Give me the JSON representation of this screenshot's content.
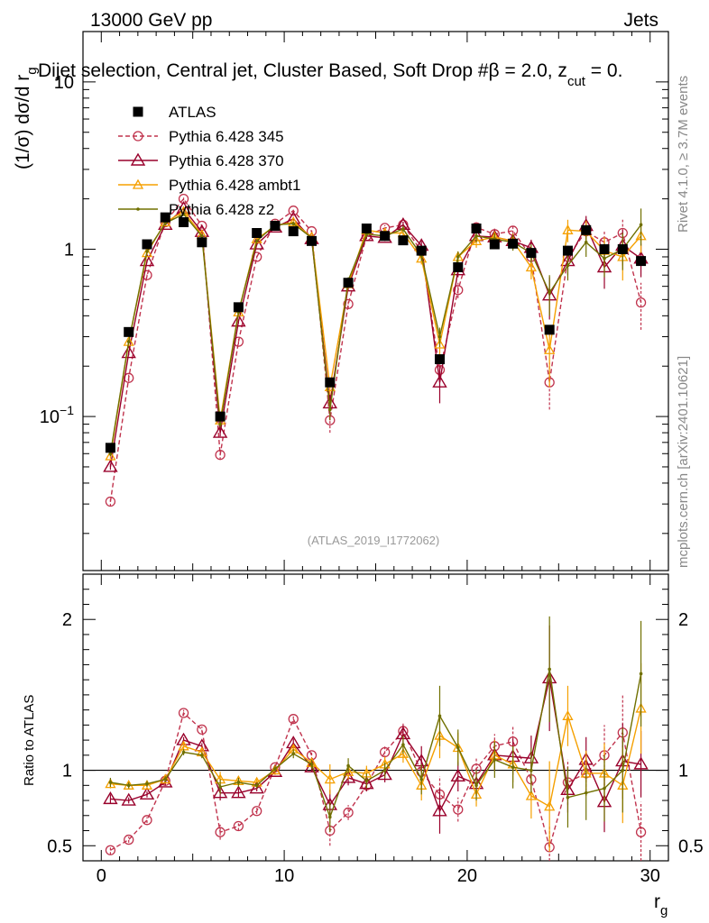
{
  "header": {
    "left": "13000 GeV pp",
    "right": "Jets",
    "title": "Dijet selection, Central jet, Cluster Based, Soft Drop #β = 2.0, z",
    "title_sub": "cut",
    "title_tail": " = 0.",
    "ref_label": "(ATLAS_2019_I1772062)",
    "side_top": "Rivet 4.1.0, ≥ 3.7M events",
    "side_bottom": "mcplots.cern.ch [arXiv:2401.10621]"
  },
  "colors": {
    "data": "#000000",
    "p345": "#c0334d",
    "p370": "#99002b",
    "ambt1": "#f5a000",
    "z2": "#707000"
  },
  "chart_data": [
    {
      "type": "line",
      "panel": "main",
      "ylabel": "(1/σ) dσ/d r",
      "ylabel_sub": "g",
      "yscale": "log",
      "ylim": [
        0.012,
        20
      ],
      "xlim": [
        -1,
        31
      ],
      "yticks": [
        {
          "v": 0.1,
          "label": "10",
          "exp": "−1"
        },
        {
          "v": 1,
          "label": "1"
        },
        {
          "v": 10,
          "label": "10"
        }
      ],
      "x": [
        0.5,
        1.5,
        2.5,
        3.5,
        4.5,
        5.5,
        6.5,
        7.5,
        8.5,
        9.5,
        10.5,
        11.5,
        12.5,
        13.5,
        14.5,
        15.5,
        16.5,
        17.5,
        18.5,
        19.5,
        20.5,
        21.5,
        22.5,
        23.5,
        24.5,
        25.5,
        26.5,
        27.5,
        28.5,
        29.5
      ],
      "series": [
        {
          "name": "ATLAS",
          "key": "data",
          "marker": "square",
          "values": [
            0.065,
            0.32,
            1.07,
            1.55,
            1.45,
            1.1,
            0.1,
            0.45,
            1.25,
            1.38,
            1.28,
            1.12,
            0.16,
            0.63,
            1.33,
            1.2,
            1.13,
            0.98,
            0.22,
            0.78,
            1.33,
            1.07,
            1.08,
            0.95,
            0.33,
            0.98,
            1.3,
            1.0,
            1.0,
            0.85
          ]
        },
        {
          "name": "Pythia 6.428 345",
          "key": "p345",
          "marker": "circle",
          "dash": true,
          "values": [
            0.031,
            0.17,
            0.7,
            1.45,
            2.0,
            1.38,
            0.059,
            0.28,
            0.9,
            1.42,
            1.7,
            1.28,
            0.095,
            0.47,
            1.2,
            1.34,
            1.4,
            0.97,
            0.19,
            0.57,
            1.35,
            1.23,
            1.29,
            0.9,
            0.16,
            0.9,
            1.28,
            1.1,
            1.25,
            0.48
          ],
          "err": [
            0.002,
            0.008,
            0.02,
            0.03,
            0.04,
            0.03,
            0.004,
            0.01,
            0.02,
            0.03,
            0.04,
            0.03,
            0.015,
            0.03,
            0.05,
            0.05,
            0.06,
            0.07,
            0.03,
            0.06,
            0.1,
            0.1,
            0.12,
            0.12,
            0.05,
            0.15,
            0.2,
            0.2,
            0.25,
            0.15
          ]
        },
        {
          "name": "Pythia 6.428 370",
          "key": "p370",
          "marker": "triangle",
          "values": [
            0.05,
            0.24,
            0.85,
            1.4,
            1.75,
            1.27,
            0.08,
            0.37,
            1.07,
            1.35,
            1.52,
            1.15,
            0.12,
            0.6,
            1.2,
            1.17,
            1.4,
            1.05,
            0.16,
            0.75,
            1.2,
            1.18,
            1.12,
            1.02,
            0.53,
            0.85,
            1.38,
            0.78,
            1.05,
            0.88
          ],
          "err": [
            0.002,
            0.008,
            0.02,
            0.03,
            0.04,
            0.03,
            0.004,
            0.01,
            0.02,
            0.03,
            0.04,
            0.03,
            0.015,
            0.03,
            0.05,
            0.05,
            0.06,
            0.07,
            0.04,
            0.07,
            0.1,
            0.1,
            0.12,
            0.12,
            0.15,
            0.15,
            0.2,
            0.2,
            0.25,
            0.2
          ]
        },
        {
          "name": "Pythia 6.428 ambt1",
          "key": "ambt1",
          "marker": "triangle-small",
          "values": [
            0.058,
            0.28,
            0.95,
            1.45,
            1.68,
            1.22,
            0.095,
            0.42,
            1.15,
            1.38,
            1.45,
            1.18,
            0.15,
            0.62,
            1.3,
            1.25,
            1.25,
            0.88,
            0.27,
            0.9,
            1.12,
            1.18,
            1.12,
            0.78,
            0.25,
            1.3,
            1.28,
            0.98,
            0.9,
            1.2
          ],
          "err": [
            0.002,
            0.008,
            0.02,
            0.03,
            0.04,
            0.03,
            0.004,
            0.01,
            0.02,
            0.03,
            0.04,
            0.03,
            0.015,
            0.03,
            0.05,
            0.05,
            0.06,
            0.07,
            0.04,
            0.07,
            0.1,
            0.1,
            0.12,
            0.12,
            0.1,
            0.2,
            0.2,
            0.2,
            0.25,
            0.25
          ]
        },
        {
          "name": "Pythia 6.428 z2",
          "key": "z2",
          "marker": "dot",
          "values": [
            0.06,
            0.28,
            0.97,
            1.43,
            1.62,
            1.2,
            0.09,
            0.42,
            1.12,
            1.4,
            1.42,
            1.17,
            0.11,
            0.65,
            1.23,
            1.2,
            1.32,
            0.92,
            0.3,
            0.9,
            1.2,
            1.15,
            1.1,
            0.95,
            0.55,
            0.8,
            1.1,
            0.88,
            1.0,
            1.4
          ],
          "err": [
            0.002,
            0.008,
            0.02,
            0.03,
            0.04,
            0.03,
            0.004,
            0.01,
            0.02,
            0.03,
            0.04,
            0.03,
            0.015,
            0.03,
            0.05,
            0.05,
            0.06,
            0.07,
            0.04,
            0.07,
            0.1,
            0.1,
            0.12,
            0.12,
            0.15,
            0.15,
            0.2,
            0.2,
            0.25,
            0.35
          ]
        }
      ]
    },
    {
      "type": "line",
      "panel": "ratio",
      "ylabel": "Ratio to ATLAS",
      "xlabel": "r",
      "xlabel_sub": "g",
      "ylim": [
        0.4,
        2.3
      ],
      "xlim": [
        -1,
        31
      ],
      "xticks": [
        0,
        10,
        20,
        30
      ],
      "yticks": [
        0.5,
        1,
        2
      ],
      "reference": 1,
      "x": [
        0.5,
        1.5,
        2.5,
        3.5,
        4.5,
        5.5,
        6.5,
        7.5,
        8.5,
        9.5,
        10.5,
        11.5,
        12.5,
        13.5,
        14.5,
        15.5,
        16.5,
        17.5,
        18.5,
        19.5,
        20.5,
        21.5,
        22.5,
        23.5,
        24.5,
        25.5,
        26.5,
        27.5,
        28.5,
        29.5
      ],
      "series": [
        {
          "key": "p345",
          "marker": "circle",
          "dash": true,
          "values": [
            0.47,
            0.54,
            0.67,
            0.93,
            1.38,
            1.27,
            0.59,
            0.63,
            0.73,
            1.02,
            1.34,
            1.1,
            0.6,
            0.72,
            0.9,
            1.12,
            1.26,
            0.99,
            0.84,
            0.74,
            1.01,
            1.16,
            1.19,
            0.94,
            0.49,
            0.92,
            0.98,
            1.1,
            1.25,
            0.59
          ],
          "err": [
            0.03,
            0.02,
            0.02,
            0.02,
            0.02,
            0.02,
            0.05,
            0.03,
            0.02,
            0.02,
            0.03,
            0.03,
            0.1,
            0.05,
            0.04,
            0.04,
            0.05,
            0.07,
            0.12,
            0.08,
            0.07,
            0.08,
            0.1,
            0.13,
            0.15,
            0.15,
            0.15,
            0.2,
            0.25,
            0.2
          ]
        },
        {
          "key": "p370",
          "marker": "triangle",
          "values": [
            0.81,
            0.8,
            0.84,
            0.92,
            1.2,
            1.16,
            0.85,
            0.85,
            0.88,
            0.99,
            1.18,
            1.02,
            0.77,
            0.95,
            0.91,
            0.97,
            1.24,
            1.06,
            0.73,
            0.96,
            0.91,
            1.1,
            1.09,
            1.08,
            1.61,
            0.87,
            1.07,
            0.79,
            1.06,
            1.04
          ],
          "err": [
            0.03,
            0.02,
            0.02,
            0.02,
            0.02,
            0.02,
            0.05,
            0.03,
            0.02,
            0.02,
            0.03,
            0.03,
            0.1,
            0.05,
            0.05,
            0.05,
            0.06,
            0.1,
            0.15,
            0.1,
            0.08,
            0.1,
            0.12,
            0.15,
            0.35,
            0.15,
            0.15,
            0.2,
            0.25,
            0.22
          ]
        },
        {
          "key": "ambt1",
          "marker": "triangle-small",
          "values": [
            0.91,
            0.9,
            0.9,
            0.94,
            1.16,
            1.12,
            0.94,
            0.93,
            0.92,
            1.0,
            1.14,
            1.05,
            0.94,
            0.99,
            0.98,
            1.04,
            1.11,
            0.9,
            1.23,
            1.15,
            0.84,
            1.1,
            1.04,
            0.83,
            0.76,
            1.36,
            0.98,
            0.98,
            0.9,
            1.41
          ],
          "err": [
            0.03,
            0.02,
            0.02,
            0.02,
            0.02,
            0.02,
            0.05,
            0.03,
            0.02,
            0.02,
            0.03,
            0.03,
            0.1,
            0.05,
            0.05,
            0.05,
            0.06,
            0.1,
            0.15,
            0.1,
            0.08,
            0.1,
            0.12,
            0.15,
            0.3,
            0.2,
            0.15,
            0.2,
            0.25,
            0.3
          ]
        },
        {
          "key": "z2",
          "marker": "dot",
          "values": [
            0.92,
            0.9,
            0.91,
            0.94,
            1.12,
            1.1,
            0.89,
            0.92,
            0.9,
            1.01,
            1.11,
            1.04,
            0.69,
            1.03,
            0.93,
            1.0,
            1.17,
            0.94,
            1.36,
            1.15,
            0.9,
            1.07,
            1.02,
            1.0,
            1.67,
            0.82,
            0.85,
            0.88,
            1.0,
            1.64
          ],
          "err": [
            0.03,
            0.02,
            0.02,
            0.02,
            0.02,
            0.02,
            0.05,
            0.03,
            0.02,
            0.02,
            0.03,
            0.03,
            0.1,
            0.05,
            0.05,
            0.05,
            0.06,
            0.1,
            0.2,
            0.12,
            0.1,
            0.12,
            0.14,
            0.15,
            0.35,
            0.2,
            0.18,
            0.22,
            0.28,
            0.35
          ]
        }
      ]
    }
  ]
}
